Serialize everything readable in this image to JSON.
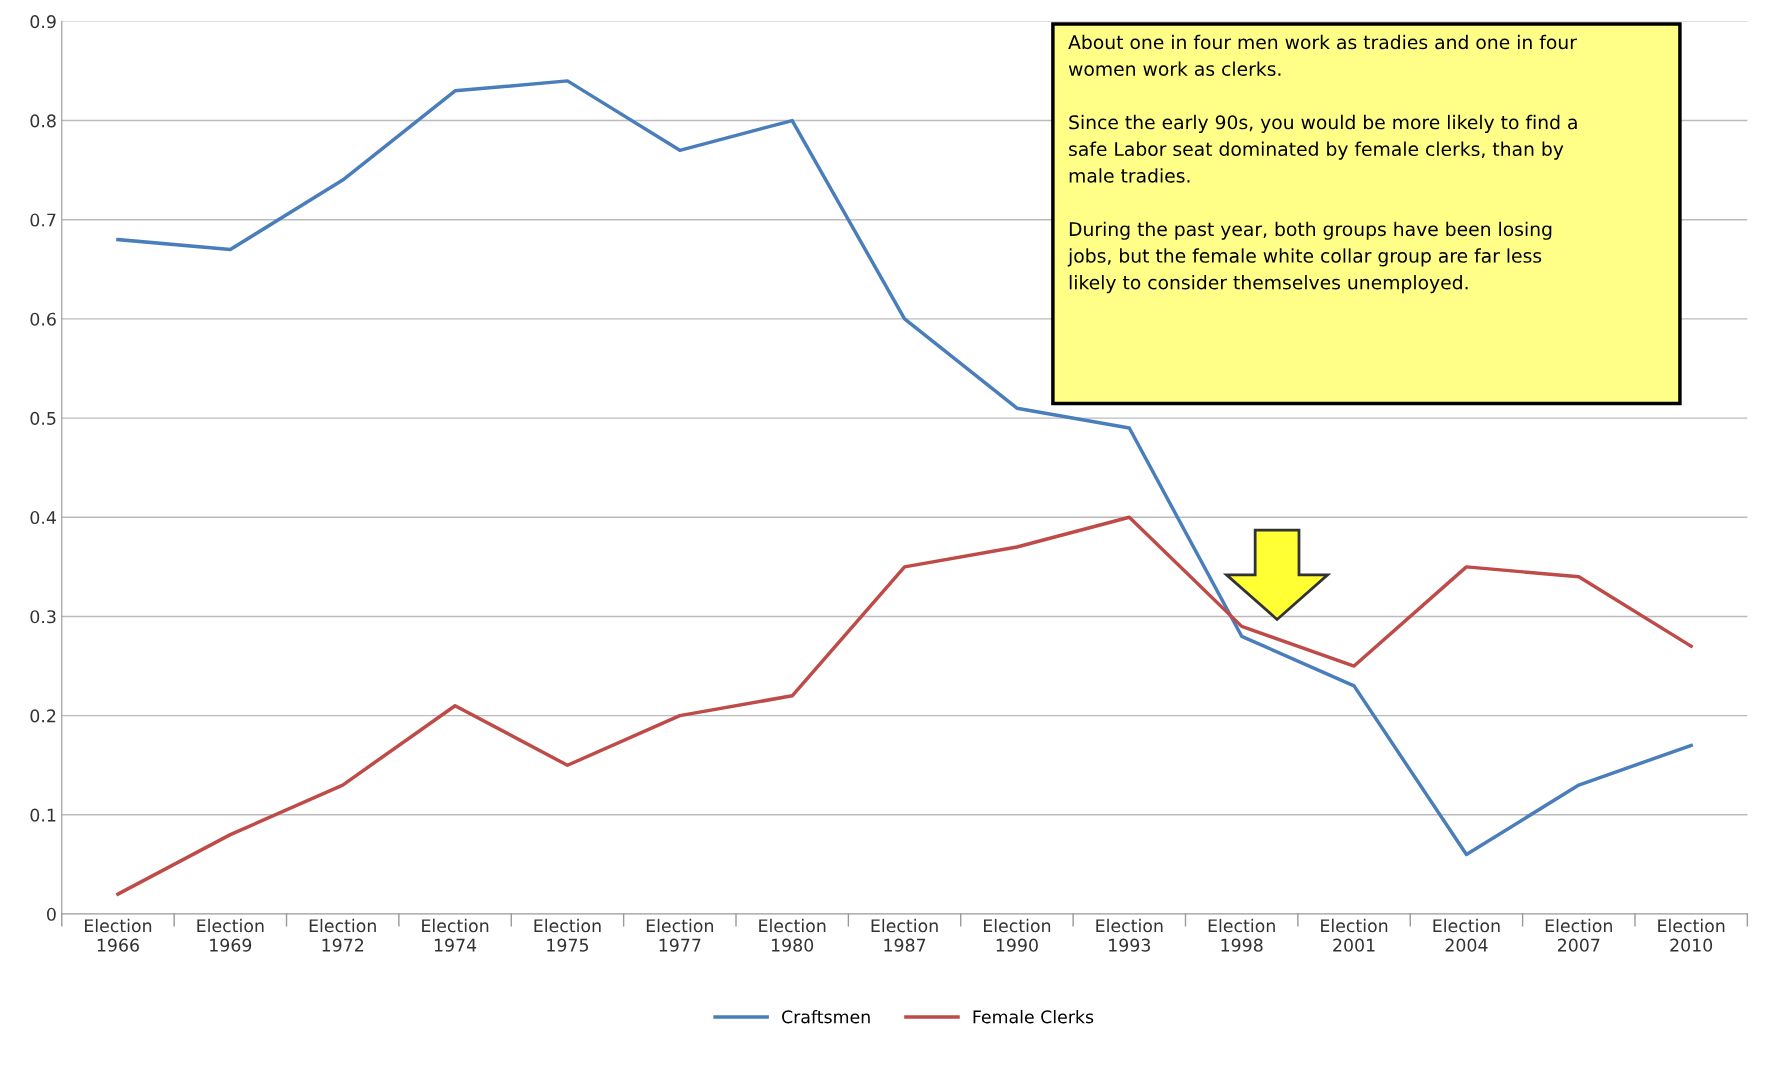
{
  "chart_data": {
    "type": "line",
    "categories": [
      "Election\n1966",
      "Election\n1969",
      "Election\n1972",
      "Election\n1974",
      "Election\n1975",
      "Election\n1977",
      "Election\n1980",
      "Election\n1987",
      "Election\n1990",
      "Election\n1993",
      "Election\n1998",
      "Election\n2001",
      "Election\n2004",
      "Election\n2007",
      "Election\n2010"
    ],
    "series": [
      {
        "name": "Craftsmen",
        "color": "#4a7ebb",
        "values": [
          0.68,
          0.67,
          0.74,
          0.83,
          0.84,
          0.77,
          0.8,
          0.6,
          0.51,
          0.49,
          0.28,
          0.23,
          0.06,
          0.13,
          0.17
        ]
      },
      {
        "name": "Female Clerks",
        "color": "#be4b48",
        "values": [
          0.02,
          0.08,
          0.13,
          0.21,
          0.15,
          0.2,
          0.22,
          0.35,
          0.37,
          0.4,
          0.29,
          0.25,
          0.35,
          0.34,
          0.27
        ]
      }
    ],
    "ylim": [
      0,
      0.9
    ],
    "yticks": [
      0,
      0.1,
      0.2,
      0.3,
      0.4,
      0.5,
      0.6,
      0.7,
      0.8,
      0.9
    ],
    "grid": "y",
    "legend": "bottom",
    "marker": "none",
    "line_style": "solid",
    "annotations": [
      "About one in four men work as tradies and one in four\nwomen work as clerks.\n\nSince the early 90s, you would be more likely to find a\nsafe Labor seat dominated by female clerks, than by\nmale tradies.\n\nDuring the past year, both groups have been losing\njobs, but the female white collar group are far less\nlikely to consider themselves unemployed.\n"
    ]
  }
}
